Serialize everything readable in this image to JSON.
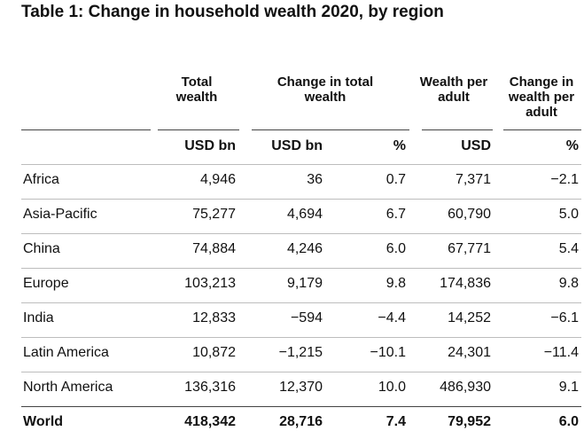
{
  "title": "Table 1: Change in household wealth 2020, by region",
  "headers": {
    "total_wealth": "Total wealth",
    "change_total": "Change in total wealth",
    "wealth_per_adult": "Wealth per adult",
    "change_per_adult": "Change in wealth per adult"
  },
  "units": {
    "total_wealth": "USD bn",
    "change_usd": "USD bn",
    "change_pct": "%",
    "wealth_per_adult": "USD",
    "change_per_adult": "%"
  },
  "rows": [
    {
      "region": "Africa",
      "total": "4,946",
      "change_usd": "36",
      "change_pct": "0.7",
      "per_adult": "7,371",
      "change_per_adult": "−2.1"
    },
    {
      "region": "Asia-Pacific",
      "total": "75,277",
      "change_usd": "4,694",
      "change_pct": "6.7",
      "per_adult": "60,790",
      "change_per_adult": "5.0"
    },
    {
      "region": "China",
      "total": "74,884",
      "change_usd": "4,246",
      "change_pct": "6.0",
      "per_adult": "67,771",
      "change_per_adult": "5.4"
    },
    {
      "region": "Europe",
      "total": "103,213",
      "change_usd": "9,179",
      "change_pct": "9.8",
      "per_adult": "174,836",
      "change_per_adult": "9.8"
    },
    {
      "region": "India",
      "total": "12,833",
      "change_usd": "−594",
      "change_pct": "−4.4",
      "per_adult": "14,252",
      "change_per_adult": "−6.1"
    },
    {
      "region": "Latin America",
      "total": "10,872",
      "change_usd": "−1,215",
      "change_pct": "−10.1",
      "per_adult": "24,301",
      "change_per_adult": "−11.4"
    },
    {
      "region": "North America",
      "total": "136,316",
      "change_usd": "12,370",
      "change_pct": "10.0",
      "per_adult": "486,930",
      "change_per_adult": "9.1"
    },
    {
      "region": "World",
      "total": "418,342",
      "change_usd": "28,716",
      "change_pct": "7.4",
      "per_adult": "79,952",
      "change_per_adult": "6.0"
    }
  ]
}
